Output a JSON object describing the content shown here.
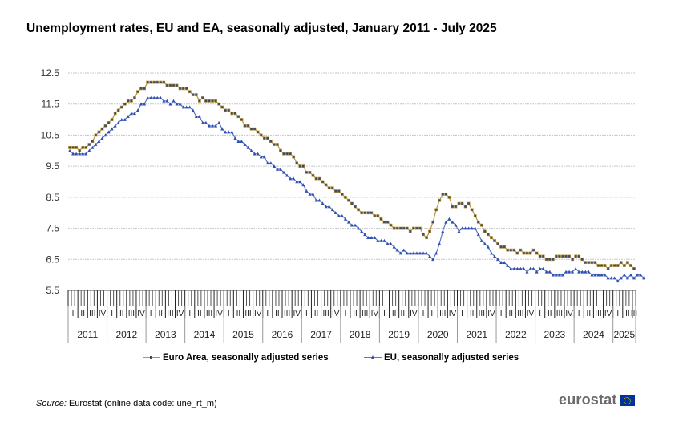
{
  "title": "Unemployment rates, EU and EA, seasonally adjusted, January 2011 - July 2025",
  "source_label": "Source:",
  "source_text": " Eurostat (online data code: une_rt_m)",
  "logo_text": "eurostat",
  "chart_data": {
    "type": "line",
    "title": "Unemployment rates, EU and EA, seasonally adjusted, January 2011 - July 2025",
    "xlabel": "",
    "ylabel": "",
    "ylim": [
      5.5,
      12.5
    ],
    "yticks": [
      "12.5",
      "11.5",
      "10.5",
      "9.5",
      "8.5",
      "7.5",
      "6.5",
      "5.5"
    ],
    "ytick_values": [
      12.5,
      11.5,
      10.5,
      9.5,
      8.5,
      7.5,
      6.5,
      5.5
    ],
    "grid": true,
    "legend_position": "bottom",
    "x_start": "2011-01",
    "x_end": "2025-07",
    "years": [
      "2011",
      "2012",
      "2013",
      "2014",
      "2015",
      "2016",
      "2017",
      "2018",
      "2019",
      "2020",
      "2021",
      "2022",
      "2023",
      "2024",
      "2025"
    ],
    "quarter_labels": [
      "I",
      "II",
      "III",
      "IV"
    ],
    "series": [
      {
        "name": "Euro Area, seasonally adjusted series",
        "color": "#b8963c",
        "marker_color": "#404a60",
        "values": [
          10.1,
          10.1,
          10.1,
          10.0,
          10.1,
          10.1,
          10.2,
          10.3,
          10.5,
          10.6,
          10.7,
          10.8,
          10.9,
          11.0,
          11.2,
          11.3,
          11.4,
          11.5,
          11.6,
          11.6,
          11.7,
          11.9,
          12.0,
          12.0,
          12.2,
          12.2,
          12.2,
          12.2,
          12.2,
          12.2,
          12.1,
          12.1,
          12.1,
          12.1,
          12.0,
          12.0,
          12.0,
          11.9,
          11.8,
          11.8,
          11.6,
          11.7,
          11.6,
          11.6,
          11.6,
          11.6,
          11.5,
          11.4,
          11.3,
          11.3,
          11.2,
          11.2,
          11.1,
          11.0,
          10.8,
          10.8,
          10.7,
          10.7,
          10.6,
          10.5,
          10.4,
          10.4,
          10.3,
          10.2,
          10.2,
          10.0,
          9.9,
          9.9,
          9.9,
          9.8,
          9.6,
          9.5,
          9.5,
          9.3,
          9.3,
          9.2,
          9.1,
          9.1,
          9.0,
          8.9,
          8.8,
          8.8,
          8.7,
          8.7,
          8.6,
          8.5,
          8.4,
          8.3,
          8.2,
          8.1,
          8.0,
          8.0,
          8.0,
          8.0,
          7.9,
          7.9,
          7.8,
          7.7,
          7.7,
          7.6,
          7.5,
          7.5,
          7.5,
          7.5,
          7.5,
          7.4,
          7.5,
          7.5,
          7.5,
          7.3,
          7.2,
          7.4,
          7.7,
          8.1,
          8.4,
          8.6,
          8.6,
          8.5,
          8.2,
          8.2,
          8.3,
          8.3,
          8.2,
          8.3,
          8.1,
          7.9,
          7.7,
          7.6,
          7.4,
          7.3,
          7.2,
          7.1,
          7.0,
          6.9,
          6.9,
          6.8,
          6.8,
          6.8,
          6.7,
          6.8,
          6.7,
          6.7,
          6.7,
          6.8,
          6.7,
          6.6,
          6.6,
          6.5,
          6.5,
          6.5,
          6.6,
          6.6,
          6.6,
          6.6,
          6.6,
          6.5,
          6.6,
          6.6,
          6.5,
          6.4,
          6.4,
          6.4,
          6.4,
          6.3,
          6.3,
          6.3,
          6.2,
          6.3,
          6.3,
          6.3,
          6.4,
          6.3,
          6.4,
          6.3,
          6.2
        ]
      },
      {
        "name": "EU, seasonally adjusted series",
        "color": "#5b79c6",
        "marker_color": "#2e4fb0",
        "values": [
          10.0,
          9.9,
          9.9,
          9.9,
          9.9,
          9.9,
          10.0,
          10.1,
          10.2,
          10.3,
          10.4,
          10.5,
          10.6,
          10.7,
          10.8,
          10.9,
          11.0,
          11.0,
          11.1,
          11.2,
          11.2,
          11.3,
          11.5,
          11.5,
          11.7,
          11.7,
          11.7,
          11.7,
          11.7,
          11.6,
          11.6,
          11.5,
          11.6,
          11.5,
          11.5,
          11.4,
          11.4,
          11.4,
          11.3,
          11.1,
          11.1,
          10.9,
          10.9,
          10.8,
          10.8,
          10.8,
          10.9,
          10.7,
          10.6,
          10.6,
          10.6,
          10.4,
          10.3,
          10.3,
          10.2,
          10.1,
          10.0,
          9.9,
          9.9,
          9.8,
          9.8,
          9.6,
          9.6,
          9.5,
          9.4,
          9.4,
          9.3,
          9.2,
          9.1,
          9.1,
          9.0,
          9.0,
          8.9,
          8.7,
          8.6,
          8.6,
          8.4,
          8.4,
          8.3,
          8.2,
          8.2,
          8.1,
          8.0,
          7.9,
          7.9,
          7.8,
          7.7,
          7.6,
          7.6,
          7.5,
          7.4,
          7.3,
          7.2,
          7.2,
          7.2,
          7.1,
          7.1,
          7.1,
          7.0,
          7.0,
          6.9,
          6.8,
          6.7,
          6.8,
          6.7,
          6.7,
          6.7,
          6.7,
          6.7,
          6.7,
          6.7,
          6.6,
          6.5,
          6.7,
          7.0,
          7.4,
          7.7,
          7.8,
          7.7,
          7.6,
          7.4,
          7.5,
          7.5,
          7.5,
          7.5,
          7.5,
          7.3,
          7.1,
          7.0,
          6.9,
          6.7,
          6.6,
          6.5,
          6.4,
          6.4,
          6.3,
          6.2,
          6.2,
          6.2,
          6.2,
          6.2,
          6.1,
          6.2,
          6.2,
          6.1,
          6.2,
          6.2,
          6.1,
          6.1,
          6.0,
          6.0,
          6.0,
          6.0,
          6.1,
          6.1,
          6.1,
          6.2,
          6.1,
          6.1,
          6.1,
          6.1,
          6.0,
          6.0,
          6.0,
          6.0,
          6.0,
          5.9,
          5.9,
          5.9,
          5.8,
          5.9,
          6.0,
          5.9,
          6.0,
          5.9,
          6.0,
          6.0,
          5.9
        ]
      }
    ]
  }
}
